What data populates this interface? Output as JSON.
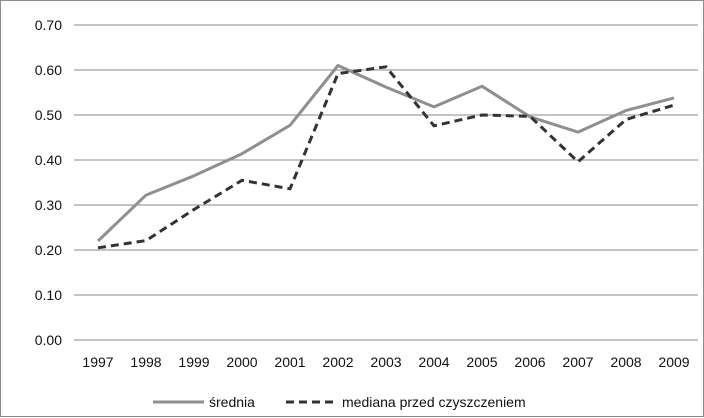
{
  "chart_data": {
    "type": "line",
    "title": "",
    "xlabel": "",
    "ylabel": "",
    "categories": [
      "1997",
      "1998",
      "1999",
      "2000",
      "2001",
      "2002",
      "2003",
      "2004",
      "2005",
      "2006",
      "2007",
      "2008",
      "2009"
    ],
    "ylim": [
      0,
      0.7
    ],
    "yticks": [
      "0.00",
      "0.10",
      "0.20",
      "0.30",
      "0.40",
      "0.50",
      "0.60",
      "0.70"
    ],
    "grid": true,
    "legend_position": "bottom",
    "series": [
      {
        "name": "średnia",
        "color": "#8f8f8f",
        "dash": "solid",
        "values": [
          0.22,
          0.322,
          0.365,
          0.414,
          0.477,
          0.61,
          0.562,
          0.518,
          0.564,
          0.496,
          0.462,
          0.51,
          0.538
        ]
      },
      {
        "name": "mediana przed czyszczeniem",
        "color": "#333333",
        "dash": "dashed",
        "values": [
          0.205,
          0.221,
          0.29,
          0.355,
          0.336,
          0.592,
          0.607,
          0.476,
          0.5,
          0.497,
          0.396,
          0.49,
          0.522
        ]
      }
    ]
  }
}
